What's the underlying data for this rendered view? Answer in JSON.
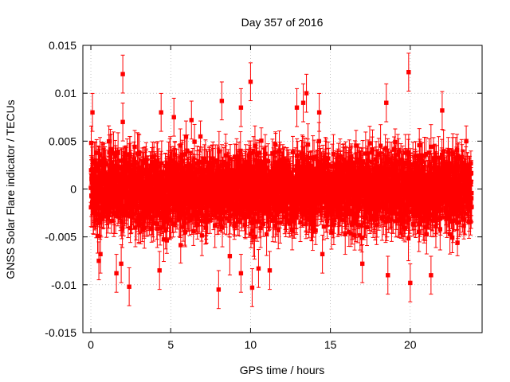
{
  "chart_data": {
    "type": "scatter",
    "title": "Day 357 of 2016",
    "xlabel": "GPS time / hours",
    "ylabel": "GNSS Solar Flare indicator / TECUs",
    "xlim": [
      -0.5,
      24.5
    ],
    "ylim": [
      -0.015,
      0.015
    ],
    "xticks": [
      0,
      5,
      10,
      15,
      20
    ],
    "xtick_labels": [
      "0",
      "5",
      "10",
      "15",
      "20"
    ],
    "yticks": [
      -0.015,
      -0.01,
      -0.005,
      0,
      0.005,
      0.01,
      0.015
    ],
    "ytick_labels": [
      "-0.015",
      "-0.01",
      "-0.005",
      "0",
      "0.005",
      "0.01",
      "0.015"
    ],
    "grid": true,
    "marker": "filled-square",
    "color": "#ff0000",
    "error_bars": true,
    "typical_error": 0.0018,
    "sampling_interval_hours": 0.0083,
    "dense_band_range": [
      -0.004,
      0.004
    ],
    "notable_points": [
      {
        "x": 0.1,
        "y": 0.008
      },
      {
        "x": 0.5,
        "y": -0.0075
      },
      {
        "x": 0.6,
        "y": -0.0068
      },
      {
        "x": 1.6,
        "y": -0.0088
      },
      {
        "x": 1.9,
        "y": -0.0078
      },
      {
        "x": 2.0,
        "y": 0.012
      },
      {
        "x": 2.0,
        "y": 0.007
      },
      {
        "x": 2.4,
        "y": -0.0102
      },
      {
        "x": 4.3,
        "y": -0.0085
      },
      {
        "x": 4.4,
        "y": 0.008
      },
      {
        "x": 5.2,
        "y": 0.0075
      },
      {
        "x": 6.3,
        "y": 0.0072
      },
      {
        "x": 8.0,
        "y": -0.0105
      },
      {
        "x": 8.2,
        "y": 0.0092
      },
      {
        "x": 8.7,
        "y": -0.007
      },
      {
        "x": 9.4,
        "y": 0.0085
      },
      {
        "x": 9.4,
        "y": -0.0088
      },
      {
        "x": 10.0,
        "y": 0.0112
      },
      {
        "x": 10.1,
        "y": -0.0103
      },
      {
        "x": 10.5,
        "y": -0.0083
      },
      {
        "x": 11.2,
        "y": -0.0085
      },
      {
        "x": 12.9,
        "y": 0.0085
      },
      {
        "x": 13.3,
        "y": 0.009
      },
      {
        "x": 13.5,
        "y": 0.01
      },
      {
        "x": 14.3,
        "y": 0.008
      },
      {
        "x": 14.5,
        "y": -0.0068
      },
      {
        "x": 17.0,
        "y": -0.0078
      },
      {
        "x": 18.5,
        "y": 0.009
      },
      {
        "x": 18.6,
        "y": -0.009
      },
      {
        "x": 19.9,
        "y": 0.0122
      },
      {
        "x": 20.0,
        "y": -0.0098
      },
      {
        "x": 21.3,
        "y": -0.009
      },
      {
        "x": 22.0,
        "y": 0.0082
      }
    ]
  }
}
